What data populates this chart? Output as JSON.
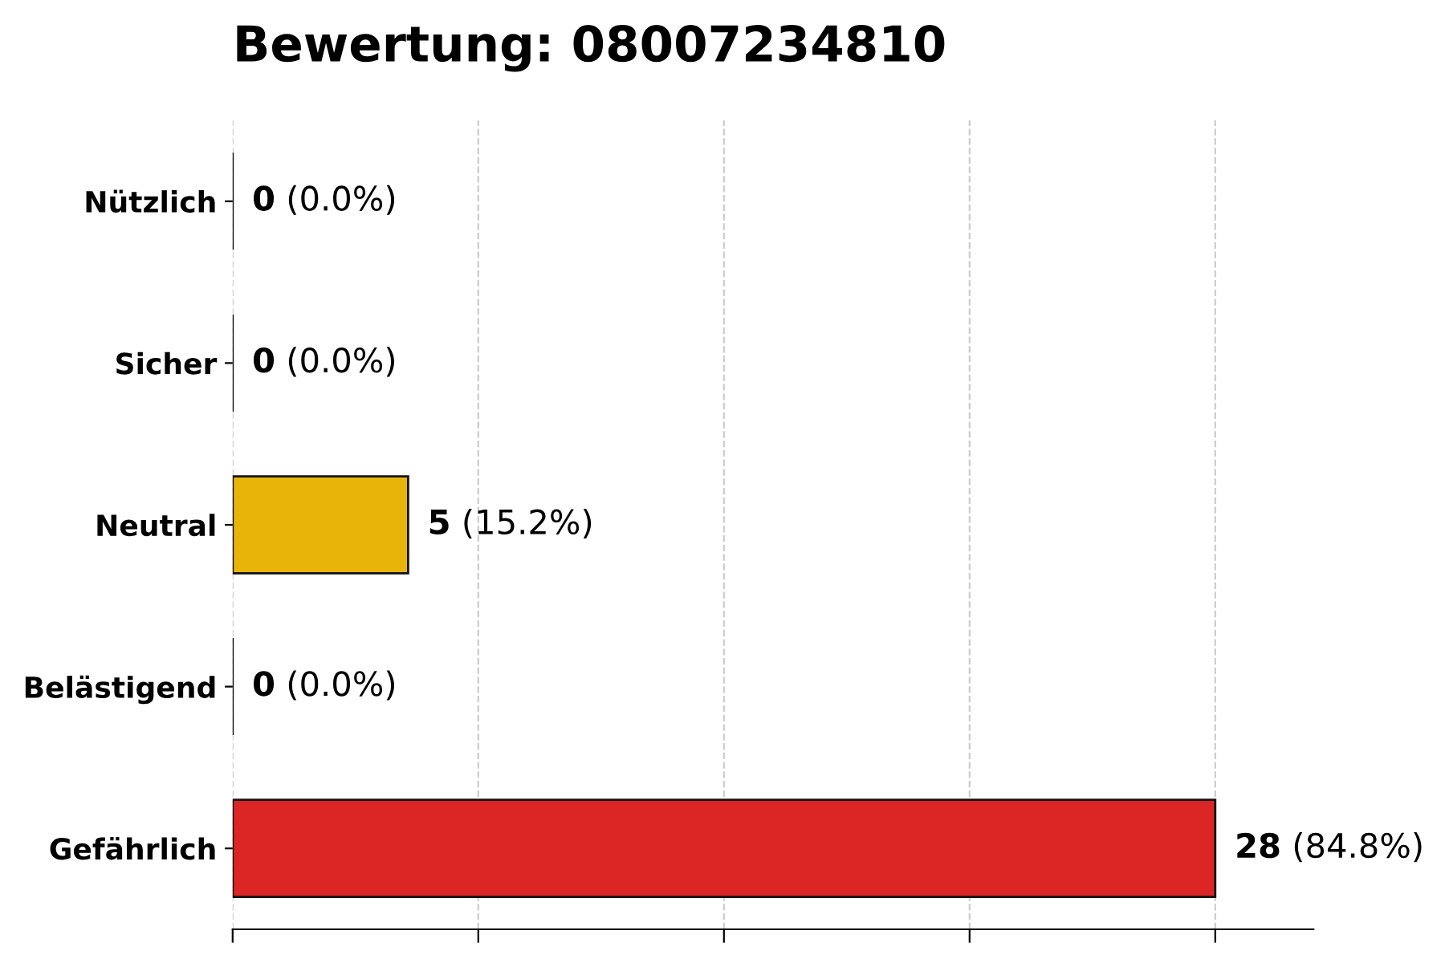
{
  "chart_data": {
    "type": "bar",
    "orientation": "horizontal",
    "title": "Bewertung: 08007234810",
    "categories": [
      "Nützlich",
      "Sicher",
      "Neutral",
      "Belästigend",
      "Gefährlich"
    ],
    "values": [
      0,
      0,
      5,
      0,
      28
    ],
    "value_labels": [
      "0 (0.0%)",
      "0 (0.0%)",
      "5 (15.2%)",
      "0 (0.0%)",
      "28 (84.8%)"
    ],
    "colors": [
      "#111111",
      "#111111",
      "#e8b40a",
      "#111111",
      "#dc2626"
    ],
    "xlim": [
      0,
      30.8
    ],
    "xticks": [
      {
        "value": 0,
        "label": null
      },
      {
        "value": 7,
        "label": null
      },
      {
        "value": 14,
        "label": null
      },
      {
        "value": 21,
        "label": null
      },
      {
        "value": 28,
        "label": null
      }
    ],
    "tick_labels": "y",
    "grid": "x"
  }
}
